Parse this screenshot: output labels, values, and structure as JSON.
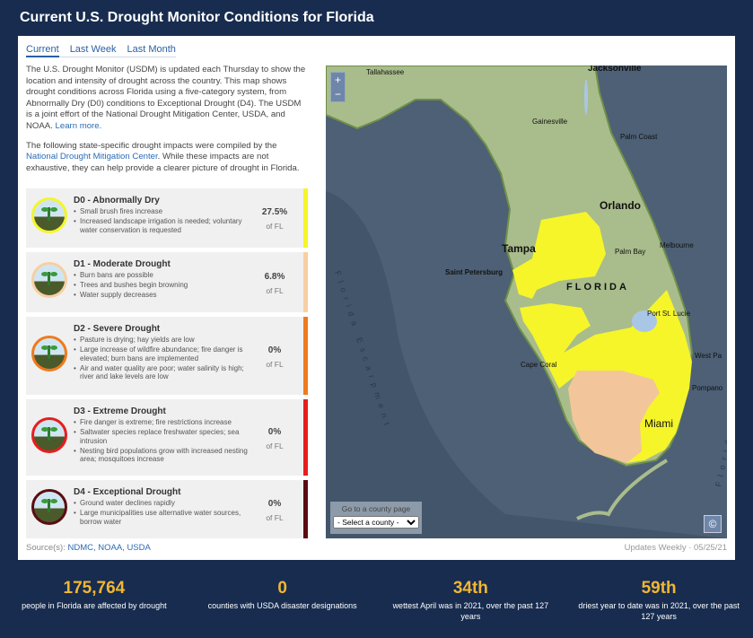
{
  "title": "Current U.S. Drought Monitor Conditions for Florida",
  "tabs": [
    "Current",
    "Last Week",
    "Last Month"
  ],
  "intro": {
    "p1": "The U.S. Drought Monitor (USDM) is updated each Thursday to show the location and intensity of drought across the country. This map shows drought conditions across Florida using a five-category system, from Abnormally Dry (D0) conditions to Exceptional Drought (D4). The USDM is a joint effort of the National Drought Mitigation Center, USDA, and NOAA.",
    "learn_more": "Learn more.",
    "p2a": "The following state-specific drought impacts were compiled by the",
    "p2link": "National Drought Mitigation Center",
    "p2b": ". While these impacts are not exhaustive, they can help provide a clearer picture of drought in Florida."
  },
  "levels": [
    {
      "title": "D0 - Abnormally Dry",
      "impacts": [
        "Small brush fires increase",
        "Increased landscape irrigation is needed; voluntary water conservation is requested"
      ],
      "pct": "27.5%",
      "of": "of FL",
      "color": "#f5f52a"
    },
    {
      "title": "D1 - Moderate Drought",
      "impacts": [
        "Burn bans are possible",
        "Trees and bushes begin browning",
        "Water supply decreases"
      ],
      "pct": "6.8%",
      "of": "of FL",
      "color": "#f7cfa3"
    },
    {
      "title": "D2 - Severe Drought",
      "impacts": [
        "Pasture is drying; hay yields are low",
        "Large increase of wildfire abundance; fire danger is elevated; burn bans are implemented",
        "Air and water quality are poor; water salinity is high; river and lake levels are low"
      ],
      "pct": "0%",
      "of": "of FL",
      "color": "#f07a1e"
    },
    {
      "title": "D3 - Extreme Drought",
      "impacts": [
        "Fire danger is extreme; fire restrictions increase",
        "Saltwater species replace freshwater species; sea intrusion",
        "Nesting bird populations grow with increased nesting area; mosquitoes increase"
      ],
      "pct": "0%",
      "of": "of FL",
      "color": "#e61e1e"
    },
    {
      "title": "D4 - Exceptional Drought",
      "impacts": [
        "Ground water declines rapidly",
        "Large municipalities use alternative water sources, borrow water"
      ],
      "pct": "0%",
      "of": "of FL",
      "color": "#5a0c12"
    }
  ],
  "source": {
    "label": "Source(s):",
    "links": "NDMC, NOAA, USDA"
  },
  "updates": "Updates Weekly  ·  05/25/21",
  "map": {
    "zoom_in": "+",
    "zoom_out": "−",
    "county_label": "Go to a county page",
    "county_select": "- Select a county -",
    "copyright": "©",
    "labels": {
      "tallahassee": "Tallahassee",
      "jacksonville": "Jacksonville",
      "gainesville": "Gainesville",
      "palmcoast": "Palm Coast",
      "orlando": "Orlando",
      "tampa": "Tampa",
      "palmbay": "Palm Bay",
      "melbourne": "Melbourne",
      "stpete": "Saint Petersburg",
      "florida": "FLORIDA",
      "portstlucie": "Port St. Lucie",
      "westpalm": "West Pa",
      "capecoral": "Cape Coral",
      "pompano": "Pompano",
      "miami": "Miami",
      "escarpment": "Florida Escarpment",
      "valley": "Florida Valley"
    },
    "colors": {
      "water": "#4d6075",
      "land": "#a9bc8c",
      "d0": "#f5f52a",
      "d1": "#f2c69a"
    }
  },
  "stats": [
    {
      "num": "175,764",
      "desc": "people in Florida are affected by drought"
    },
    {
      "num": "0",
      "desc": "counties with USDA disaster designations"
    },
    {
      "num": "34th",
      "desc": "wettest April was in 2021, over the past 127 years"
    },
    {
      "num": "59th",
      "desc": "driest year to date was in 2021, over the past 127 years"
    }
  ]
}
